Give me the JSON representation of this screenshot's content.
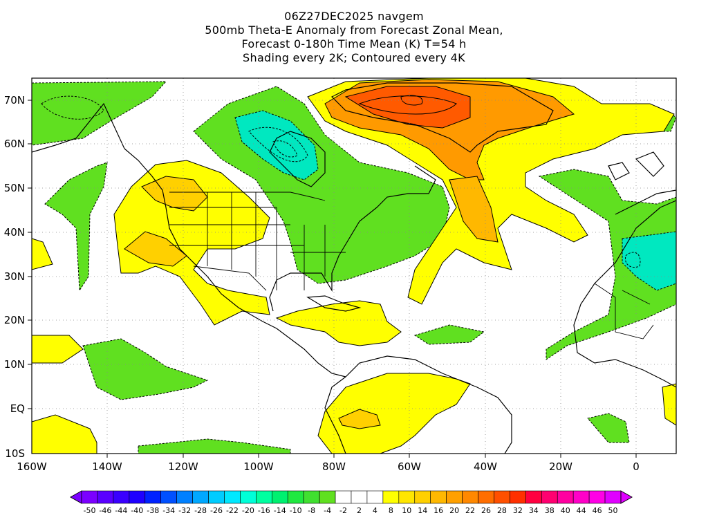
{
  "title": {
    "line1": "06Z27DEC2025 navgem",
    "line2": "500mb Theta-E Anomaly from Forecast Zonal Mean,",
    "line3": "Forecast 0-180h Time Mean (K) T=54 h",
    "line4": "Shading every 2K; Contoured every 4K"
  },
  "axes": {
    "x_ticks": [
      "160W",
      "140W",
      "120W",
      "100W",
      "80W",
      "60W",
      "40W",
      "20W",
      "0"
    ],
    "y_ticks": [
      "70N",
      "60N",
      "50N",
      "40N",
      "30N",
      "20N",
      "10N",
      "EQ",
      "10S"
    ]
  },
  "colorbar": {
    "labels": [
      "-50",
      "-46",
      "-44",
      "-40",
      "-38",
      "-34",
      "-32",
      "-28",
      "-26",
      "-22",
      "-20",
      "-16",
      "-14",
      "-10",
      "-8",
      "-4",
      "-2",
      "2",
      "4",
      "8",
      "10",
      "14",
      "16",
      "20",
      "22",
      "26",
      "28",
      "32",
      "34",
      "38",
      "40",
      "44",
      "46",
      "50"
    ],
    "colors": [
      "#7b00ff",
      "#5a00ff",
      "#3a00ff",
      "#1e00ff",
      "#0022ff",
      "#0050ff",
      "#0080ff",
      "#00a8ff",
      "#00ccff",
      "#00e8ff",
      "#00ffd8",
      "#00ffa0",
      "#00f070",
      "#20e840",
      "#40e030",
      "#60e020",
      "#ffffff",
      "#ffffff",
      "#ffffff",
      "#ffff00",
      "#ffe600",
      "#ffd000",
      "#ffb800",
      "#ffa000",
      "#ff8800",
      "#ff6e00",
      "#ff5000",
      "#ff3000",
      "#ff0040",
      "#ff0070",
      "#ff00a0",
      "#ff00c8",
      "#ff00e6",
      "#e000ff"
    ]
  }
}
